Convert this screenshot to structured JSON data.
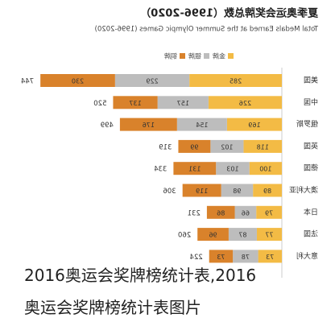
{
  "chart_data": {
    "type": "stacked-bar-horizontal",
    "title": "夏季奥运会奖牌总数（1996-2020）",
    "subtitle": "Total Medals Earned at the Summer Olympic Games (1996-2020)",
    "categories": [
      "美国",
      "中国",
      "俄罗斯",
      "英国",
      "德国",
      "澳大利亚",
      "日本",
      "法国",
      "意大利"
    ],
    "series": [
      {
        "name": "金牌",
        "color": "#f3bb45",
        "values": [
          285,
          226,
          169,
          118,
          100,
          89,
          79,
          77,
          73
        ]
      },
      {
        "name": "银牌",
        "color": "#bdbdbd",
        "values": [
          229,
          157,
          154,
          102,
          103,
          98,
          66,
          87,
          78
        ]
      },
      {
        "name": "铜牌",
        "color": "#d9822b",
        "values": [
          230,
          137,
          176,
          99,
          131,
          119,
          86,
          96,
          73
        ]
      }
    ],
    "totals": [
      744,
      520,
      499,
      319,
      334,
      306,
      231,
      260,
      224
    ],
    "legend": "top",
    "mirrored": true
  },
  "caption": [
    "2016奥运会奖牌榜统计表,2016",
    "奥运会奖牌榜统计表图片"
  ]
}
